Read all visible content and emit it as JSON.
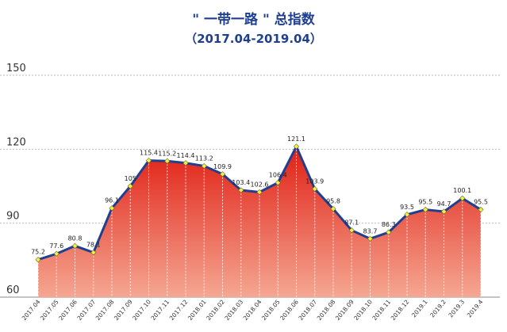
{
  "chart_data": {
    "type": "area",
    "title": "\" 一带一路 \" 总指数",
    "subtitle": "（2017.04-2019.04）",
    "xlabel": "",
    "ylabel": "",
    "ylim": [
      60,
      150
    ],
    "yticks": [
      60,
      90,
      120,
      150
    ],
    "grid": true,
    "categories": [
      "2017.04",
      "2017.05",
      "2017.06",
      "2017.07",
      "2017.08",
      "2017.09",
      "2017.10",
      "2017.11",
      "2017.12",
      "2018.01",
      "2018.02",
      "2018.03",
      "2018.04",
      "2018.05",
      "2018.06",
      "2018.07",
      "2018.08",
      "2018.09",
      "2018.10",
      "2018.11",
      "2018.12",
      "2019.1",
      "2019.2",
      "2019.3",
      "2019.4"
    ],
    "values": [
      75.2,
      77.6,
      80.8,
      78.1,
      96.1,
      105,
      115.4,
      115.2,
      114.4,
      113.2,
      109.9,
      103.4,
      102.6,
      106.4,
      121.1,
      103.9,
      95.8,
      87.1,
      83.7,
      86.3,
      93.5,
      95.5,
      94.7,
      100.1,
      95.5
    ],
    "line_color": "#1f3f8f",
    "fill_top_color": "#e01f14",
    "fill_bottom_color": "#f5a792",
    "marker_color": "#f2ee4a"
  }
}
